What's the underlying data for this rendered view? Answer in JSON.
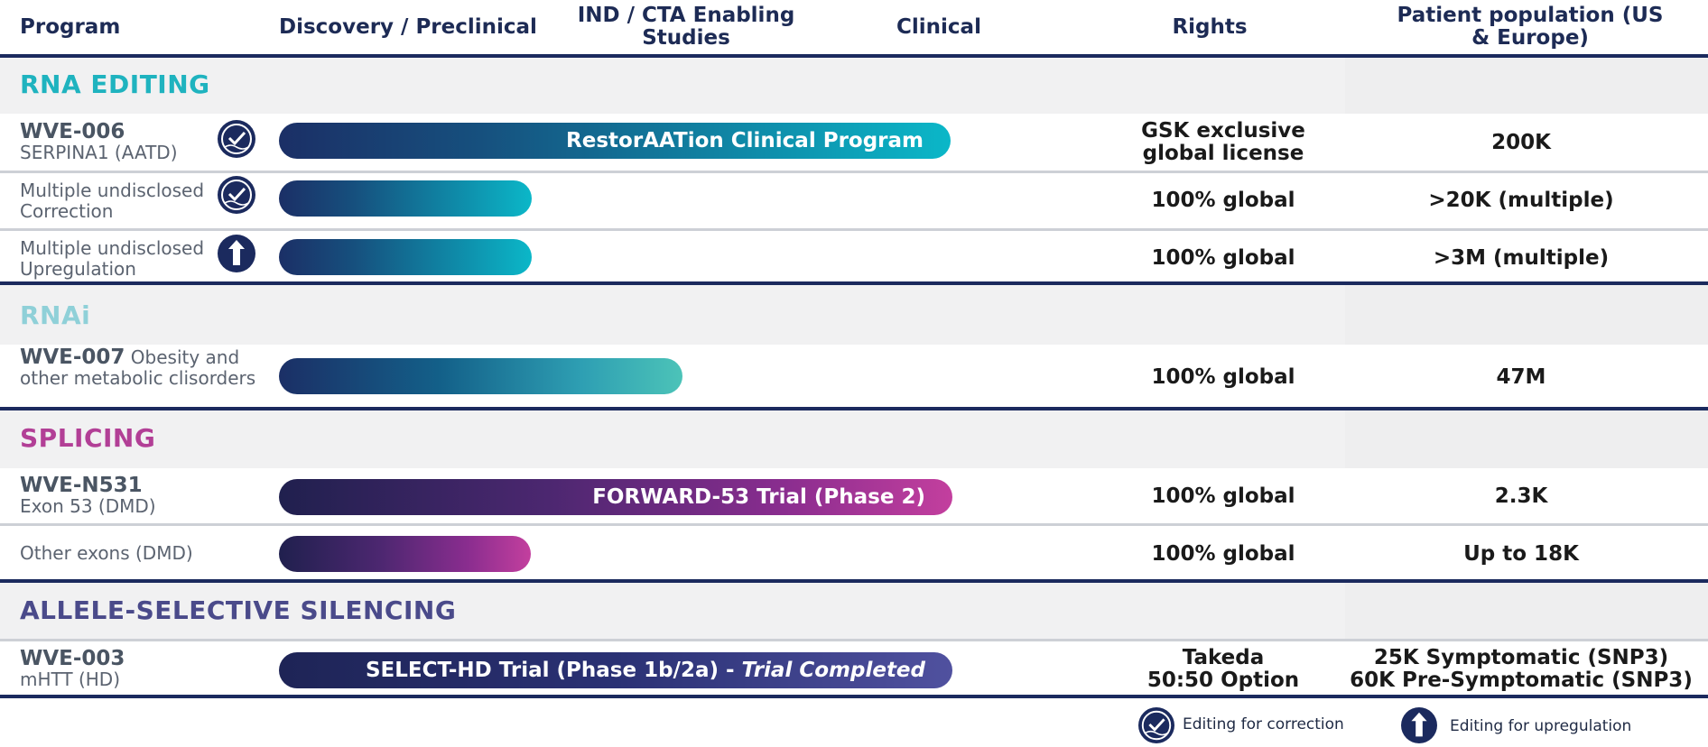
{
  "header": {
    "program": "Program",
    "discovery": "Discovery / Preclinical",
    "ind": "IND / CTA Enabling Studies",
    "clinical": "Clinical",
    "rights": "Rights",
    "population": "Patient population (US & Europe)"
  },
  "sections": {
    "rna_editing": {
      "title": "RNA EDITING",
      "color": "#1fb3bf"
    },
    "rnai": {
      "title": "RNAi",
      "color": "#8fd0d8"
    },
    "splicing": {
      "title": "SPLICING",
      "color": "#b23f96"
    },
    "silencing": {
      "title": "ALLELE-SELECTIVE SILENCING",
      "color": "#4a4a8a"
    }
  },
  "rows": {
    "wve006": {
      "code": "WVE-006",
      "desc": "SERPINA1 (AATD)",
      "icon": "editing-correction-icon",
      "bar_label": "RestorAATion Clinical Program",
      "rights": [
        "GSK exclusive",
        "global license"
      ],
      "population": "200K"
    },
    "corr": {
      "line1": "Multiple undisclosed",
      "line2": "Correction",
      "icon": "editing-correction-icon",
      "rights": "100% global",
      "population": ">20K (multiple)"
    },
    "upreg": {
      "line1": "Multiple undisclosed",
      "line2": "Upregulation",
      "icon": "editing-upregulation-icon",
      "rights": "100% global",
      "population": ">3M (multiple)"
    },
    "wve007": {
      "code": "WVE-007",
      "desc1": " Obesity and",
      "desc2": "other metabolic clisorders",
      "rights": "100% global",
      "population": "47M"
    },
    "wven531": {
      "code": "WVE-N531",
      "desc": "Exon 53 (DMD)",
      "bar_label": "FORWARD-53 Trial (Phase 2)",
      "rights": "100% global",
      "population": "2.3K"
    },
    "exons": {
      "desc": "Other exons (DMD)",
      "rights": "100% global",
      "population": "Up to 18K"
    },
    "wve003": {
      "code": "WVE-003",
      "desc": "mHTT (HD)",
      "bar_label": "SELECT-HD Trial (Phase 1b/2a) - ",
      "bar_label_italic": "Trial Completed",
      "rights": [
        "Takeda",
        "50:50 Option"
      ],
      "population": [
        "25K Symptomatic (SNP3)",
        "60K Pre-Symptomatic (SNP3)"
      ]
    }
  },
  "legend": {
    "correction": "Editing for correction",
    "upregulation": "Editing for upregulation"
  }
}
